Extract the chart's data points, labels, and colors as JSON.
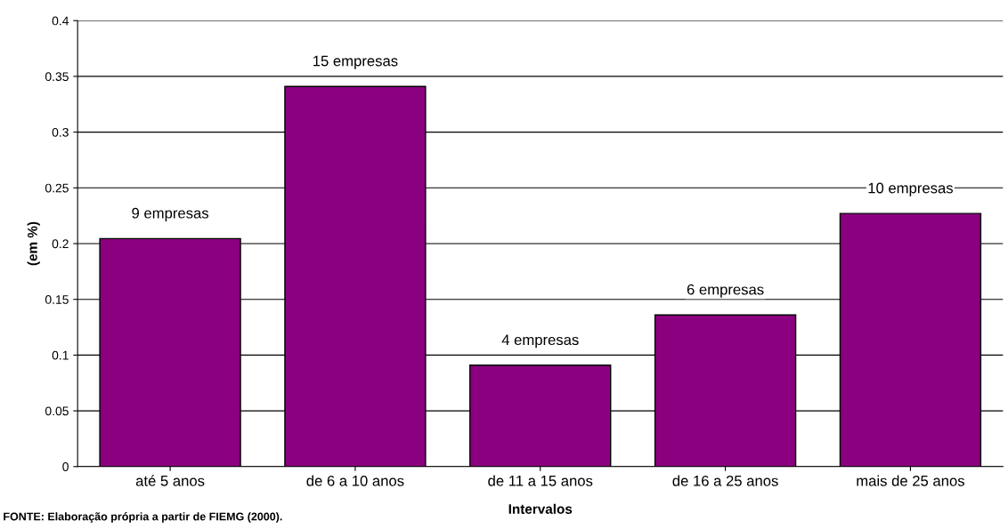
{
  "chart_data": {
    "type": "bar",
    "categories": [
      "até 5 anos",
      "de 6 a 10 anos",
      "de 11 a 15 anos",
      "de 16 a 25 anos",
      "mais de 25 anos"
    ],
    "values": [
      0.2045,
      0.341,
      0.0909,
      0.136,
      0.227
    ],
    "color": "#8a007e",
    "ylabel": "(em %)",
    "xlabel": "Intervalos",
    "ylim": [
      0,
      0.4
    ],
    "yticks": [
      0,
      0.05,
      0.1,
      0.15,
      0.2,
      0.25,
      0.3,
      0.35,
      0.4
    ],
    "grid": "y",
    "annotations": [
      {
        "text": "9 empresas",
        "x": "até 5 anos",
        "y": 0.2045
      },
      {
        "text": "15 empresas",
        "x": "de 6 a 10 anos",
        "y": 0.341
      },
      {
        "text": "4 empresas",
        "x": "de 11 a 15 anos",
        "y": 0.0909
      },
      {
        "text": "6 empresas",
        "x": "de 16 a 25 anos",
        "y": 0.136
      },
      {
        "text": "10 empresas",
        "x": "mais de 25 anos",
        "y": 0.227
      },
      "FONTE: Elaboração própria a partir de FIEMG (2000)."
    ]
  }
}
